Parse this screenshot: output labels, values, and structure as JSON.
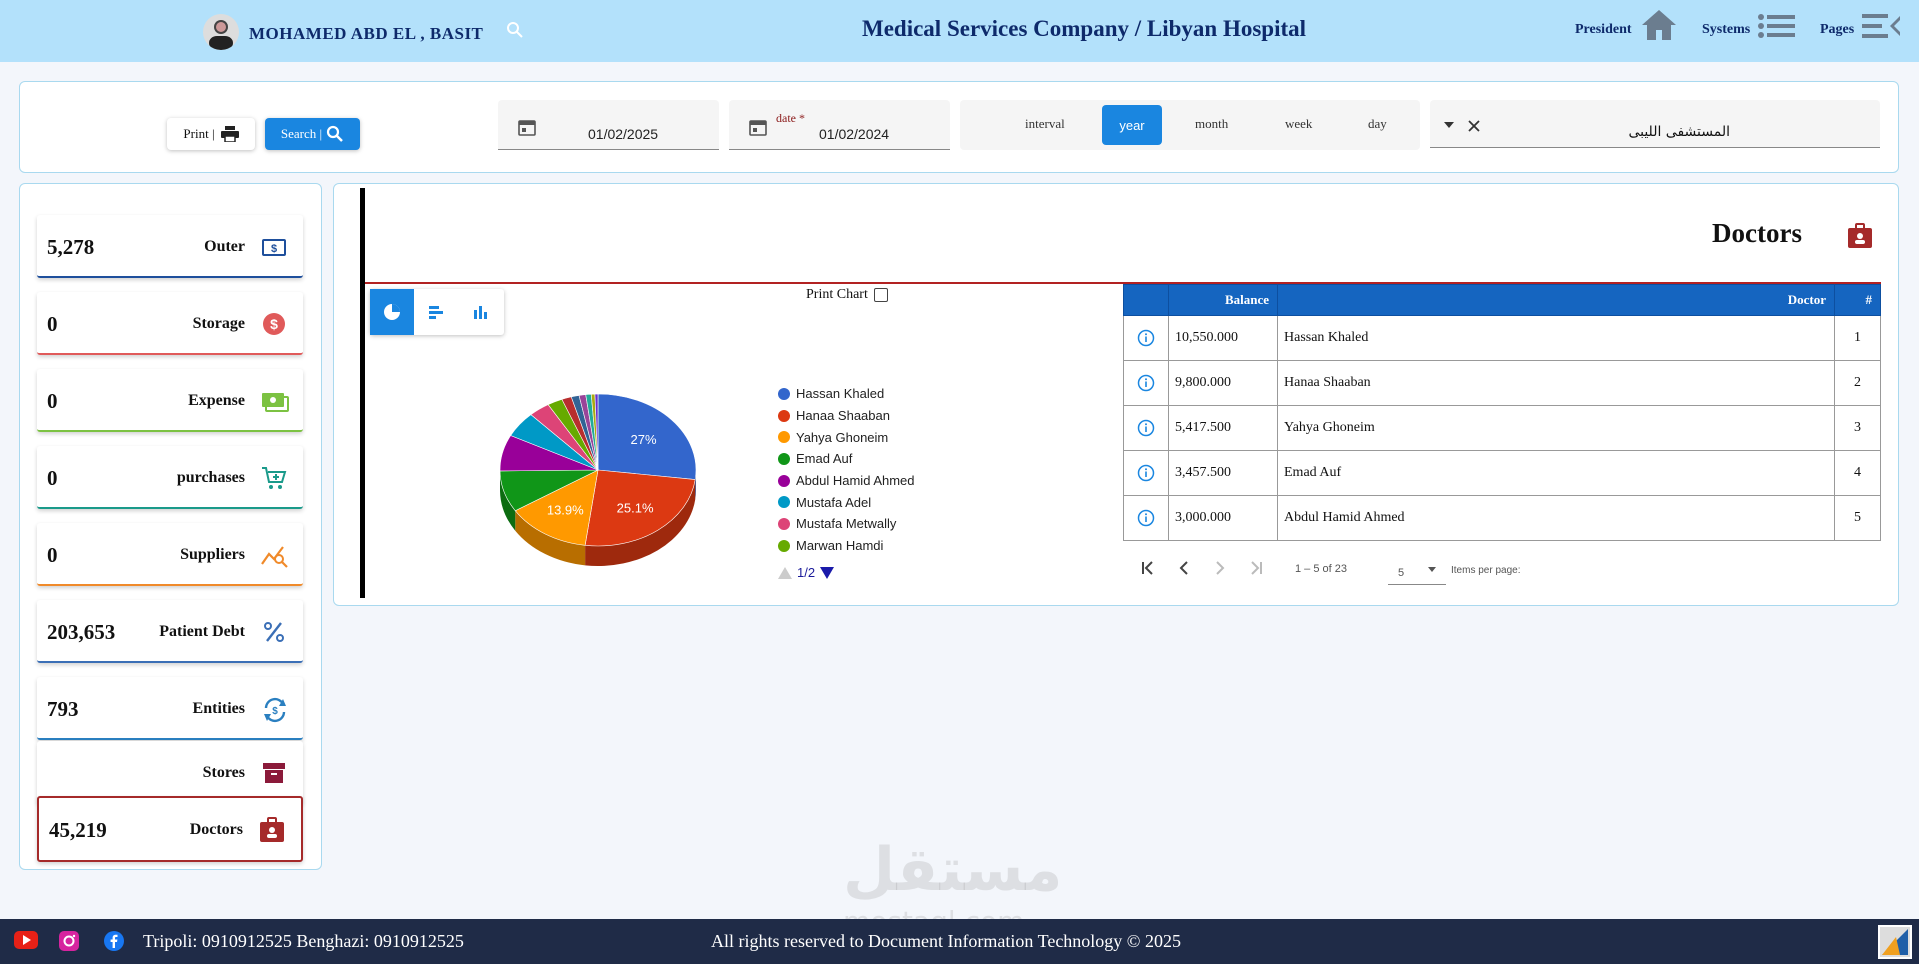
{
  "header": {
    "user_name": "MOHAMED ABD EL , BASIT",
    "title": "Medical Services Company / Libyan Hospital",
    "nav": [
      {
        "label": "President",
        "icon": "home-icon"
      },
      {
        "label": "Systems",
        "icon": "list-icon"
      },
      {
        "label": "Pages",
        "icon": "menu-icon"
      }
    ]
  },
  "filters": {
    "print_label": "Print |",
    "search_label": "Search |",
    "date_to": "01/02/2025",
    "date_from_label": "date *",
    "date_from": "01/02/2024",
    "intervals": [
      "interval",
      "year",
      "month",
      "week",
      "day"
    ],
    "interval_active": "year",
    "hospital": "المستشفى الليبى"
  },
  "stats": [
    {
      "value": "5,278",
      "label": "Outer",
      "icon": "cash-icon",
      "color": "#1e4f9c"
    },
    {
      "value": "0",
      "label": "Storage",
      "icon": "dollar-icon",
      "color": "#e05a5a"
    },
    {
      "value": "0",
      "label": "Expense",
      "icon": "money-icon",
      "color": "#7cc242"
    },
    {
      "value": "0",
      "label": "purchases",
      "icon": "cart-icon",
      "color": "#1a9a8a"
    },
    {
      "value": "0",
      "label": "Suppliers",
      "icon": "trend-icon",
      "color": "#f08a2a"
    },
    {
      "value": "203,653",
      "label": "Patient Debt",
      "icon": "percent-icon",
      "color": "#3b6fb6"
    },
    {
      "value": "793",
      "label": "Entities",
      "icon": "exchange-icon",
      "color": "#2a7fc0"
    },
    {
      "value": "",
      "label": "Stores",
      "icon": "archive-icon",
      "color": "#8b1a3a"
    },
    {
      "value": "45,219",
      "label": "Doctors",
      "icon": "id-badge-icon",
      "color": "#a52a2a"
    }
  ],
  "section_title": "Doctors",
  "print_chart_label": "Print Chart",
  "chart_data": {
    "type": "pie",
    "slices": [
      {
        "name": "Hassan Khaled",
        "value": 27,
        "color": "#3366cc"
      },
      {
        "name": "Hanaa Shaaban",
        "value": 25.1,
        "color": "#dc3912"
      },
      {
        "name": "Yahya Ghoneim",
        "value": 13.9,
        "color": "#ff9900"
      },
      {
        "name": "Emad Auf",
        "value": 8.8,
        "color": "#109618"
      },
      {
        "name": "Abdul Hamid Ahmed",
        "value": 7.7,
        "color": "#990099"
      },
      {
        "name": "Mustafa Adel",
        "value": 5.5,
        "color": "#0099c6"
      },
      {
        "name": "Mustafa Metwally",
        "value": 3.5,
        "color": "#dd4477"
      },
      {
        "name": "Marwan Hamdi",
        "value": 2.5,
        "color": "#66aa00"
      },
      {
        "name": "",
        "value": 1.6,
        "color": "#b82e2e"
      },
      {
        "name": "",
        "value": 1.3,
        "color": "#316395"
      },
      {
        "name": "",
        "value": 1.1,
        "color": "#994499"
      },
      {
        "name": "",
        "value": 0.9,
        "color": "#22aa99"
      },
      {
        "name": "",
        "value": 0.6,
        "color": "#aaaa11"
      },
      {
        "name": "",
        "value": 0.5,
        "color": "#6633cc"
      }
    ],
    "legend_page": "1/2"
  },
  "table": {
    "headers": {
      "balance": "Balance",
      "doctor": "Doctor",
      "index": "#"
    },
    "rows": [
      {
        "balance": "10,550.000",
        "doctor": "Hassan Khaled",
        "index": "1"
      },
      {
        "balance": "9,800.000",
        "doctor": "Hanaa Shaaban",
        "index": "2"
      },
      {
        "balance": "5,417.500",
        "doctor": "Yahya Ghoneim",
        "index": "3"
      },
      {
        "balance": "3,457.500",
        "doctor": "Emad Auf",
        "index": "4"
      },
      {
        "balance": "3,000.000",
        "doctor": "Abdul Hamid Ahmed",
        "index": "5"
      }
    ],
    "range": "1 – 5 of 23",
    "page_size": "5",
    "items_per_page": "Items per page:"
  },
  "footer": {
    "contacts": "Tripoli: 0910912525  Benghazi: 0910912525",
    "rights": "All rights reserved to Document Information Technology © 2025"
  },
  "watermark": {
    "ar": "مستقل",
    "en": "mostaql.com"
  }
}
